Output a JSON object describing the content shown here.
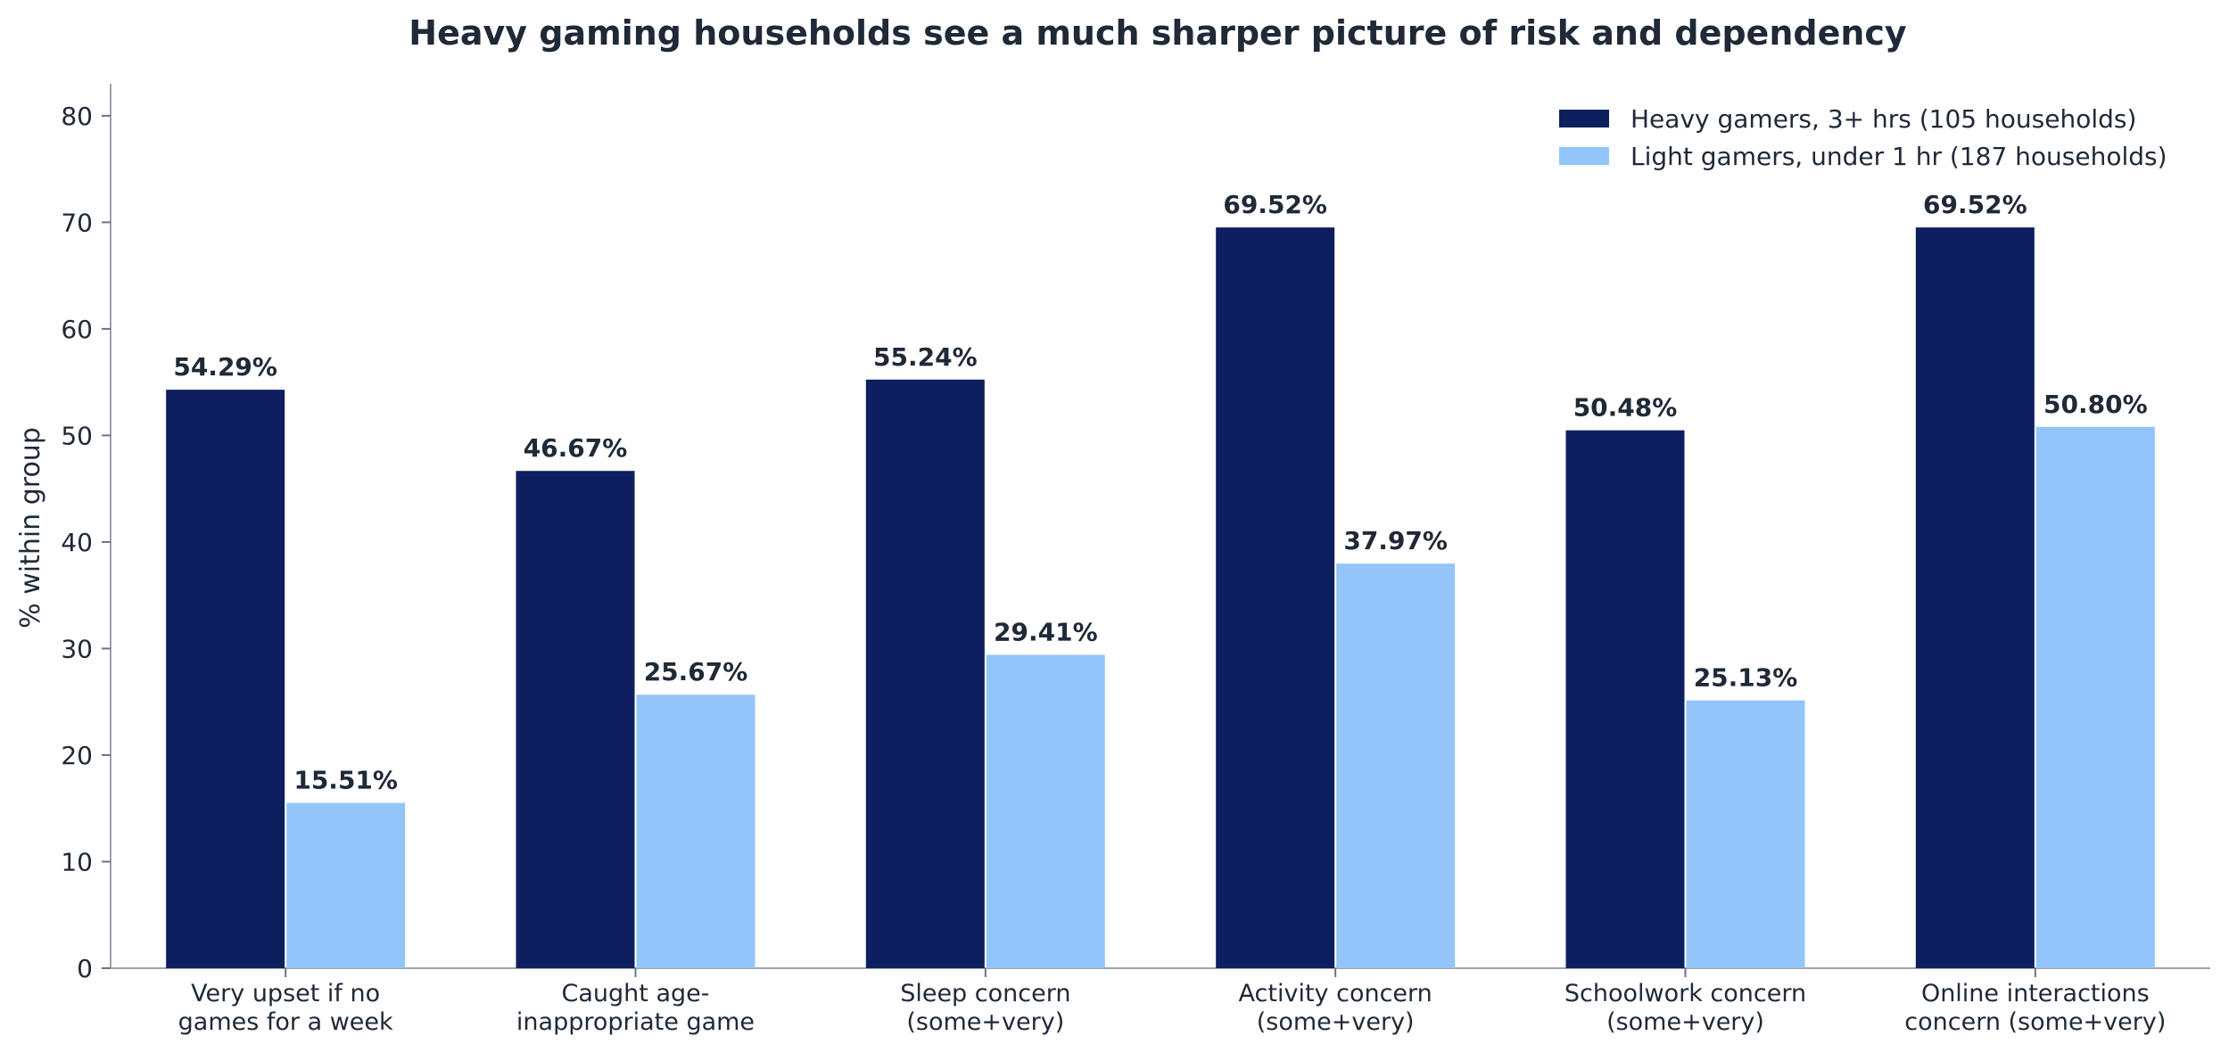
{
  "chart_data": {
    "type": "bar",
    "title": "Heavy gaming households see a much sharper picture of risk and dependency",
    "xlabel": "",
    "ylabel": "% within group",
    "ylim": [
      0,
      83
    ],
    "yticks": [
      0,
      10,
      20,
      30,
      40,
      50,
      60,
      70,
      80
    ],
    "grid": false,
    "legend_position": "top-right",
    "categories": [
      [
        "Very upset if no",
        "games for a week"
      ],
      [
        "Caught age-",
        "inappropriate game"
      ],
      [
        "Sleep concern",
        "(some+very)"
      ],
      [
        "Activity concern",
        "(some+very)"
      ],
      [
        "Schoolwork concern",
        "(some+very)"
      ],
      [
        "Online interactions",
        "concern (some+very)"
      ]
    ],
    "series": [
      {
        "name": "Heavy gamers, 3+ hrs (105 households)",
        "color": "#0d1f5f",
        "values": [
          54.29,
          46.67,
          55.24,
          69.52,
          50.48,
          69.52
        ],
        "labels": [
          "54.29%",
          "46.67%",
          "55.24%",
          "69.52%",
          "50.48%",
          "69.52%"
        ]
      },
      {
        "name": "Light gamers, under 1 hr (187 households)",
        "color": "#93c5fb",
        "values": [
          15.51,
          25.67,
          29.41,
          37.97,
          25.13,
          50.8
        ],
        "labels": [
          "15.51%",
          "25.67%",
          "29.41%",
          "37.97%",
          "25.13%",
          "50.80%"
        ]
      }
    ]
  }
}
